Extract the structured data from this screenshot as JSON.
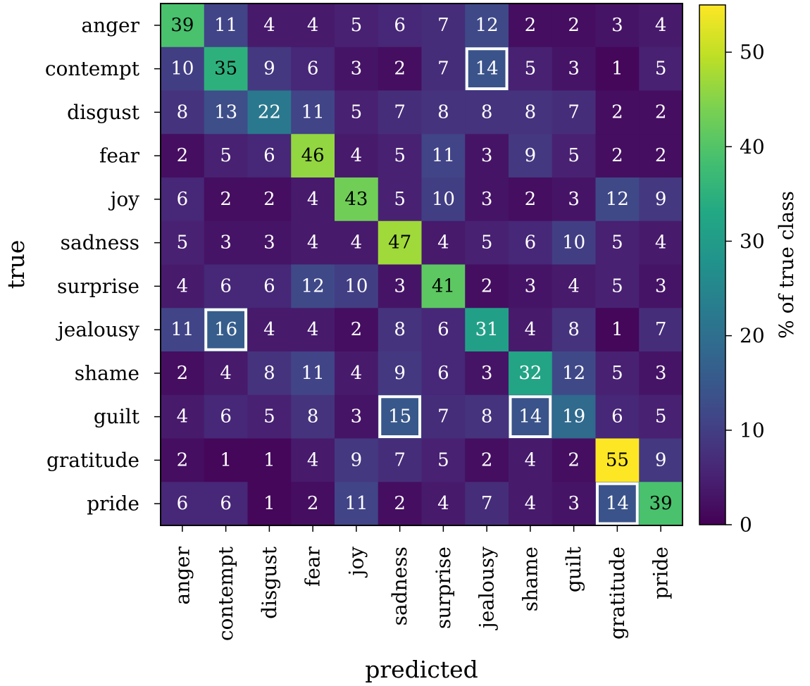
{
  "chart_data": {
    "type": "heatmap",
    "title": "",
    "xlabel": "predicted",
    "ylabel": "true",
    "x_categories": [
      "anger",
      "contempt",
      "disgust",
      "fear",
      "joy",
      "sadness",
      "surprise",
      "jealousy",
      "shame",
      "guilt",
      "gratitude",
      "pride"
    ],
    "y_categories": [
      "anger",
      "contempt",
      "disgust",
      "fear",
      "joy",
      "sadness",
      "surprise",
      "jealousy",
      "shame",
      "guilt",
      "gratitude",
      "pride"
    ],
    "values": [
      [
        39,
        11,
        4,
        4,
        5,
        6,
        7,
        12,
        2,
        2,
        3,
        4
      ],
      [
        10,
        35,
        9,
        6,
        3,
        2,
        7,
        14,
        5,
        3,
        1,
        5
      ],
      [
        8,
        13,
        22,
        11,
        5,
        7,
        8,
        8,
        8,
        7,
        2,
        2
      ],
      [
        2,
        5,
        6,
        46,
        4,
        5,
        11,
        3,
        9,
        5,
        2,
        2
      ],
      [
        6,
        2,
        2,
        4,
        43,
        5,
        10,
        3,
        2,
        3,
        12,
        9
      ],
      [
        5,
        3,
        3,
        4,
        4,
        47,
        4,
        5,
        6,
        10,
        5,
        4
      ],
      [
        4,
        6,
        6,
        12,
        10,
        3,
        41,
        2,
        3,
        4,
        5,
        3
      ],
      [
        11,
        16,
        4,
        4,
        2,
        8,
        6,
        31,
        4,
        8,
        1,
        7
      ],
      [
        2,
        4,
        8,
        11,
        4,
        9,
        6,
        3,
        32,
        12,
        5,
        3
      ],
      [
        4,
        6,
        5,
        8,
        3,
        15,
        7,
        8,
        14,
        19,
        6,
        5
      ],
      [
        2,
        1,
        1,
        4,
        9,
        7,
        5,
        2,
        4,
        2,
        55,
        9
      ],
      [
        6,
        6,
        1,
        2,
        11,
        2,
        4,
        7,
        4,
        3,
        14,
        39
      ]
    ],
    "highlighted_cells": [
      {
        "row": "contempt",
        "col": "jealousy"
      },
      {
        "row": "jealousy",
        "col": "contempt"
      },
      {
        "row": "guilt",
        "col": "sadness"
      },
      {
        "row": "guilt",
        "col": "shame"
      },
      {
        "row": "pride",
        "col": "gratitude"
      }
    ],
    "colormap": "viridis",
    "colorbar": {
      "label": "% of true class",
      "range": [
        0,
        55
      ],
      "ticks": [
        0,
        10,
        20,
        30,
        40,
        50
      ]
    }
  }
}
